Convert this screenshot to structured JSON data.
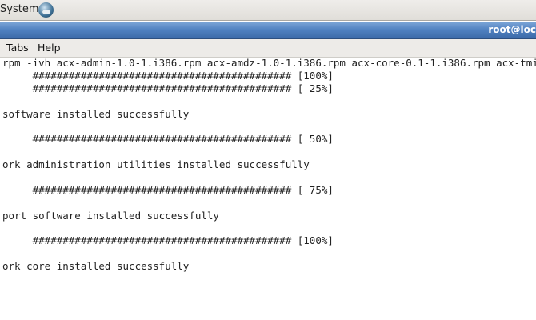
{
  "top_panel": {
    "menu_label": "System",
    "icon": "system-logo-icon"
  },
  "window": {
    "title": "root@loc"
  },
  "menubar": {
    "items": [
      {
        "label": "Tabs"
      },
      {
        "label": "Help"
      }
    ]
  },
  "terminal": {
    "lines": [
      "rpm -ivh acx-admin-1.0-1.i386.rpm acx-amdz-1.0-1.i386.rpm acx-core-0.1-1.i386.rpm acx-tmi",
      "     ########################################### [100%]",
      "     ########################################### [ 25%]",
      "",
      "software installed successfully",
      "",
      "     ########################################### [ 50%]",
      "",
      "ork administration utilities installed successfully",
      "",
      "     ########################################### [ 75%]",
      "",
      "port software installed successfully",
      "",
      "     ########################################### [100%]",
      "",
      "ork core installed successfully"
    ]
  }
}
